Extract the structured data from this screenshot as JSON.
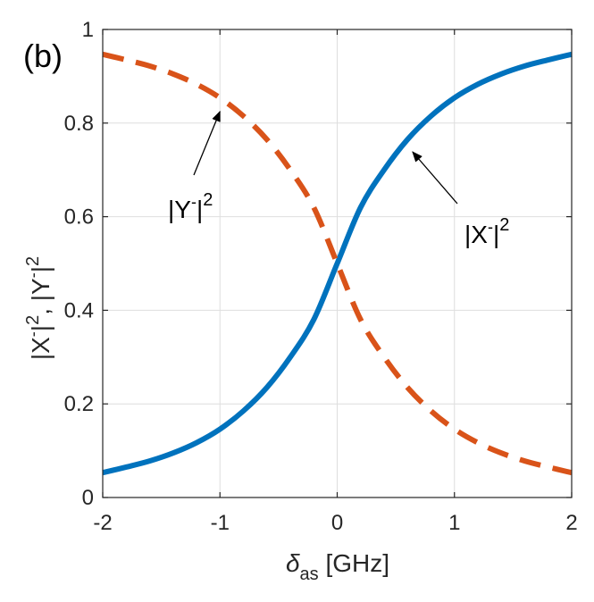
{
  "chart_data": {
    "type": "line",
    "panel_label": "(b)",
    "xlabel_symbol": "δ",
    "xlabel_subscript": "as",
    "xlabel_unit": " [GHz]",
    "ylabel_parts": [
      "|X",
      "-",
      "|",
      "2",
      ", |Y",
      "-",
      "|",
      "2"
    ],
    "xlim": [
      -2,
      2
    ],
    "ylim": [
      0,
      1
    ],
    "xticks": [
      -2,
      -1,
      0,
      1,
      2
    ],
    "yticks": [
      0,
      0.2,
      0.4,
      0.6,
      0.8,
      1
    ],
    "xtick_labels": [
      "-2",
      "-1",
      "0",
      "1",
      "2"
    ],
    "ytick_labels": [
      "0",
      "0.2",
      "0.4",
      "0.6",
      "0.8",
      "1"
    ],
    "grid": true,
    "series": [
      {
        "key": "X",
        "style": "solid",
        "color": "#0072BD",
        "x": [
          -2,
          -1.8,
          -1.6,
          -1.4,
          -1.2,
          -1,
          -0.8,
          -0.6,
          -0.4,
          -0.2,
          0,
          0.2,
          0.4,
          0.6,
          0.8,
          1,
          1.2,
          1.4,
          1.6,
          1.8,
          2
        ],
        "y": [
          0.053,
          0.065,
          0.078,
          0.095,
          0.117,
          0.146,
          0.185,
          0.235,
          0.3,
          0.38,
          0.5,
          0.62,
          0.7,
          0.765,
          0.815,
          0.854,
          0.883,
          0.905,
          0.922,
          0.935,
          0.947
        ]
      },
      {
        "key": "Y",
        "style": "dashed",
        "color": "#D95319",
        "x": [
          -2,
          -1.8,
          -1.6,
          -1.4,
          -1.2,
          -1,
          -0.8,
          -0.6,
          -0.4,
          -0.2,
          0,
          0.2,
          0.4,
          0.6,
          0.8,
          1,
          1.2,
          1.4,
          1.6,
          1.8,
          2
        ],
        "y": [
          0.947,
          0.935,
          0.922,
          0.905,
          0.883,
          0.854,
          0.815,
          0.765,
          0.7,
          0.62,
          0.5,
          0.38,
          0.3,
          0.235,
          0.185,
          0.146,
          0.117,
          0.095,
          0.078,
          0.065,
          0.053
        ]
      }
    ],
    "annotations": [
      {
        "key": "X",
        "base": "|X",
        "sup1": "-",
        "close": "|",
        "sup2": "2",
        "point": [
          0.62,
          0.75
        ]
      },
      {
        "key": "Y",
        "base": "|Y",
        "sup1": "-",
        "close": "|",
        "sup2": "2",
        "point": [
          -1.0,
          0.84
        ]
      }
    ]
  }
}
